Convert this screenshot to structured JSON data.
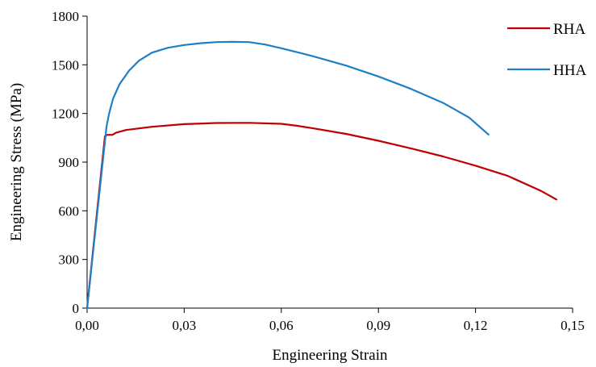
{
  "chart_data": {
    "type": "line",
    "xlabel": "Engineering Strain",
    "ylabel": "Engineering Stress (MPa)",
    "xlim": [
      0,
      0.15
    ],
    "ylim": [
      0,
      1800
    ],
    "x_ticks": [
      0,
      0.03,
      0.06,
      0.09,
      0.12,
      0.15
    ],
    "x_tick_labels": [
      "0,00",
      "0,03",
      "0,06",
      "0,09",
      "0,12",
      "0,15"
    ],
    "y_ticks": [
      0,
      300,
      600,
      900,
      1200,
      1500,
      1800
    ],
    "y_tick_labels": [
      "0",
      "300",
      "600",
      "900",
      "1200",
      "1500",
      "1800"
    ],
    "grid": false,
    "legend_position": "top-right",
    "series": [
      {
        "name": "RHA",
        "color": "#c00000",
        "points": [
          [
            0,
            0
          ],
          [
            0.0028,
            540
          ],
          [
            0.0055,
            1060
          ],
          [
            0.0062,
            1068
          ],
          [
            0.0078,
            1068
          ],
          [
            0.009,
            1082
          ],
          [
            0.012,
            1098
          ],
          [
            0.02,
            1118
          ],
          [
            0.03,
            1134
          ],
          [
            0.04,
            1141
          ],
          [
            0.05,
            1142
          ],
          [
            0.06,
            1136
          ],
          [
            0.065,
            1124
          ],
          [
            0.07,
            1108
          ],
          [
            0.08,
            1074
          ],
          [
            0.09,
            1032
          ],
          [
            0.1,
            985
          ],
          [
            0.11,
            935
          ],
          [
            0.12,
            878
          ],
          [
            0.13,
            815
          ],
          [
            0.14,
            725
          ],
          [
            0.145,
            670
          ]
        ]
      },
      {
        "name": "HHA",
        "color": "#1f7fc4",
        "points": [
          [
            0,
            0
          ],
          [
            0.003,
            560
          ],
          [
            0.006,
            1120
          ],
          [
            0.0068,
            1200
          ],
          [
            0.008,
            1290
          ],
          [
            0.01,
            1380
          ],
          [
            0.013,
            1465
          ],
          [
            0.016,
            1525
          ],
          [
            0.02,
            1575
          ],
          [
            0.025,
            1605
          ],
          [
            0.03,
            1622
          ],
          [
            0.035,
            1633
          ],
          [
            0.04,
            1640
          ],
          [
            0.045,
            1642
          ],
          [
            0.05,
            1640
          ],
          [
            0.055,
            1625
          ],
          [
            0.06,
            1602
          ],
          [
            0.07,
            1552
          ],
          [
            0.08,
            1495
          ],
          [
            0.09,
            1428
          ],
          [
            0.1,
            1352
          ],
          [
            0.11,
            1265
          ],
          [
            0.118,
            1175
          ],
          [
            0.124,
            1070
          ]
        ]
      }
    ]
  }
}
